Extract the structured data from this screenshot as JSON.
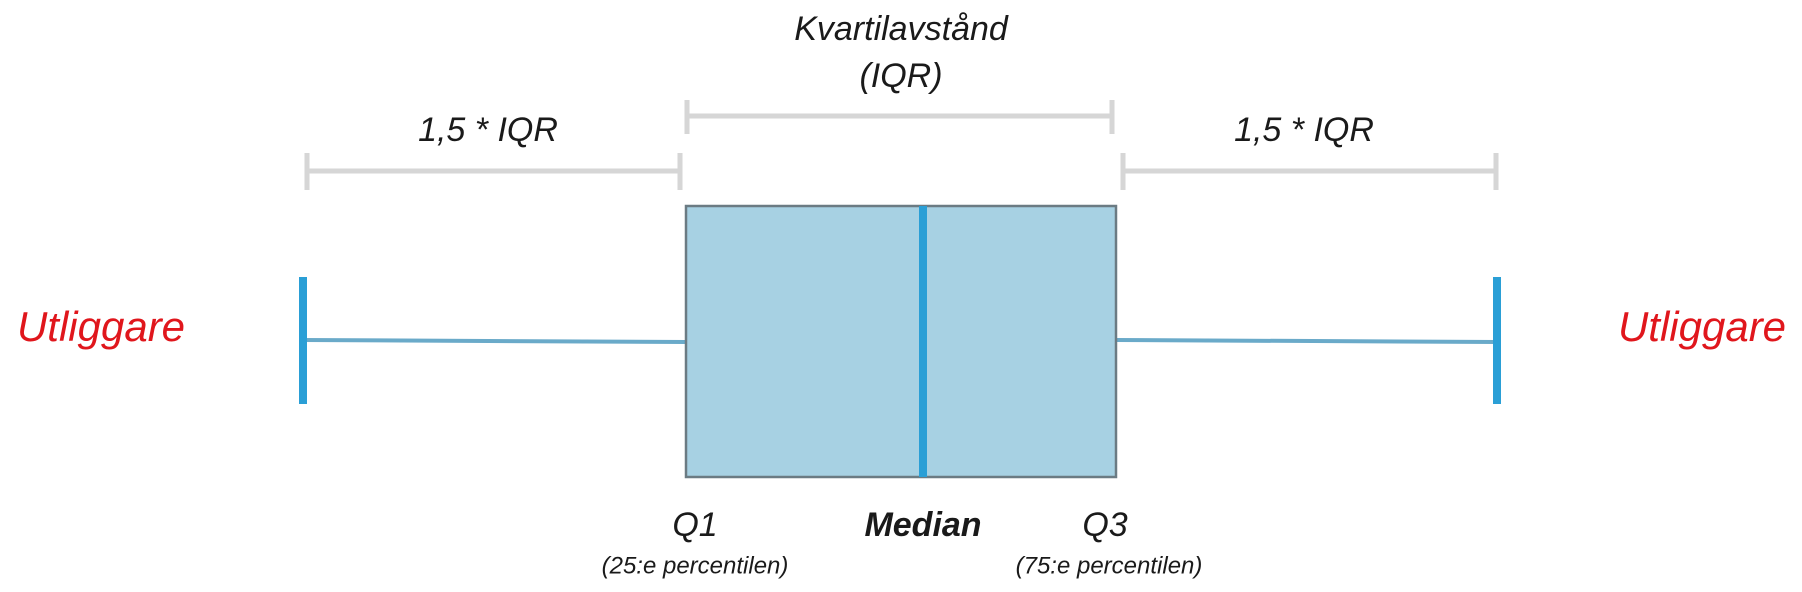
{
  "iqr": {
    "title": "Kvartilavstånd",
    "subtitle": "(IQR)"
  },
  "left_range": "1,5 * IQR",
  "right_range": "1,5 * IQR",
  "left_outlier": "Utliggare",
  "right_outlier": "Utliggare",
  "q1": {
    "label": "Q1",
    "note": "(25:e percentilen)"
  },
  "median": "Median",
  "q3": {
    "label": "Q3",
    "note": "(75:e percentilen)"
  }
}
